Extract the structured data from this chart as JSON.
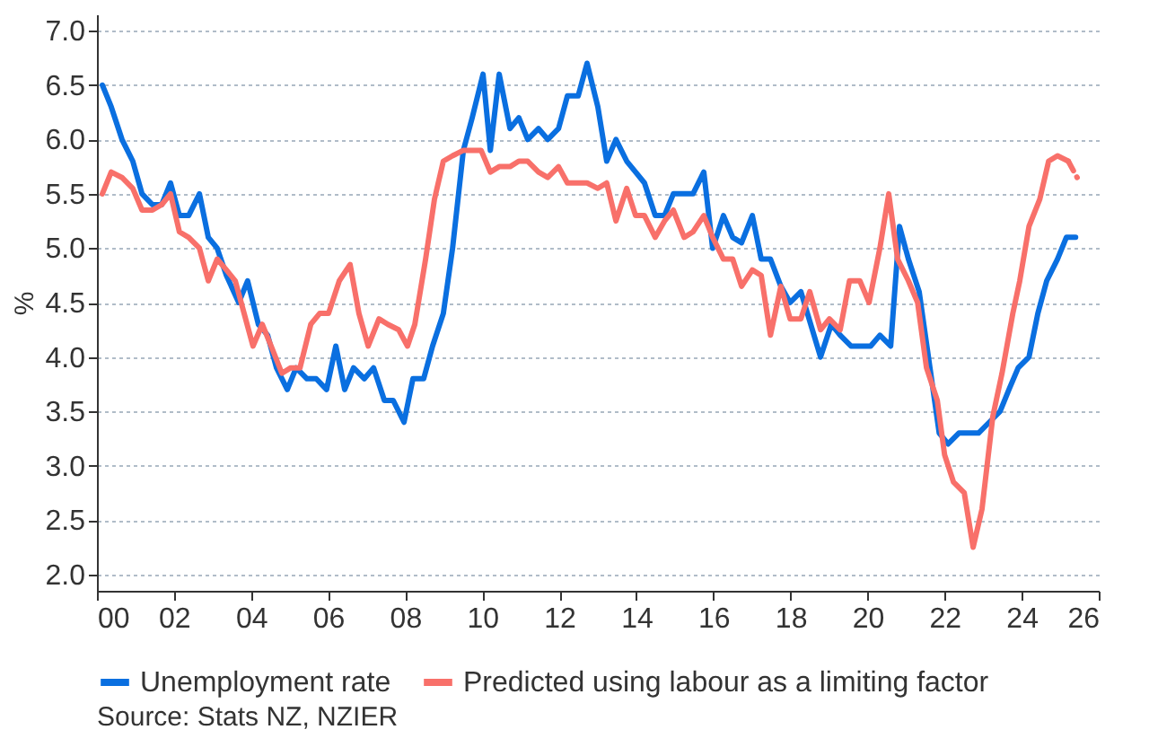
{
  "chart_data": {
    "type": "line",
    "ylabel": "%",
    "annotations": [
      "Source: Stats NZ, NZIER"
    ],
    "xlim": [
      2000,
      2026
    ],
    "xticks": [
      {
        "value": 2000,
        "label": "00"
      },
      {
        "value": 2002,
        "label": "02"
      },
      {
        "value": 2004,
        "label": "04"
      },
      {
        "value": 2006,
        "label": "06"
      },
      {
        "value": 2008,
        "label": "08"
      },
      {
        "value": 2010,
        "label": "10"
      },
      {
        "value": 2012,
        "label": "12"
      },
      {
        "value": 2014,
        "label": "14"
      },
      {
        "value": 2016,
        "label": "16"
      },
      {
        "value": 2018,
        "label": "18"
      },
      {
        "value": 2020,
        "label": "20"
      },
      {
        "value": 2022,
        "label": "22"
      },
      {
        "value": 2024,
        "label": "24"
      },
      {
        "value": 2026,
        "label": "26"
      }
    ],
    "ylim": [
      1.85,
      7.15
    ],
    "yticks": [
      {
        "value": 2,
        "label": "2.0"
      },
      2.5,
      {
        "value": 3,
        "label": "3.0"
      },
      3.5,
      {
        "value": 4,
        "label": "4.0"
      },
      4.5,
      {
        "value": 5,
        "label": "5.0"
      },
      5.5,
      {
        "value": 6,
        "label": "6.0"
      },
      6.5,
      {
        "value": 7,
        "label": "7.0"
      }
    ],
    "grid": "y",
    "legend": "bottom",
    "marker": "none",
    "series": [
      {
        "name": "Unemployment rate",
        "color": "#0a6fe0",
        "line_style": "solid",
        "x": [
          2000.14,
          2000.37,
          2000.65,
          2000.93,
          2001.17,
          2001.44,
          2001.68,
          2001.91,
          2002.14,
          2002.38,
          2002.66,
          2002.89,
          2003.12,
          2003.36,
          2003.68,
          2003.91,
          2004.19,
          2004.43,
          2004.66,
          2004.94,
          2005.17,
          2005.45,
          2005.69,
          2005.96,
          2006.2,
          2006.43,
          2006.66,
          2006.94,
          2007.18,
          2007.46,
          2007.69,
          2007.97,
          2008.2,
          2008.48,
          2008.71,
          2008.99,
          2009.23,
          2009.51,
          2009.74,
          2010.02,
          2010.21,
          2010.44,
          2010.72,
          2010.95,
          2011.18,
          2011.46,
          2011.7,
          2011.98,
          2012.21,
          2012.49,
          2012.72,
          2013.0,
          2013.23,
          2013.47,
          2013.75,
          2013.98,
          2014.21,
          2014.49,
          2014.73,
          2014.96,
          2015.24,
          2015.47,
          2015.75,
          2015.98,
          2016.26,
          2016.5,
          2016.73,
          2017.01,
          2017.24,
          2017.48,
          2017.75,
          2017.99,
          2018.27,
          2018.78,
          2019.06,
          2019.29,
          2019.57,
          2019.8,
          2020.08,
          2020.32,
          2020.6,
          2020.83,
          2021.06,
          2021.34,
          2021.62,
          2021.86,
          2022.09,
          2022.37,
          2022.65,
          2022.88,
          2023.16,
          2023.44,
          2023.67,
          2023.91,
          2024.19,
          2024.42,
          2024.65,
          2024.93,
          2025.16,
          2025.4
        ],
        "values": [
          6.5,
          6.3,
          6.0,
          5.8,
          5.5,
          5.4,
          5.4,
          5.6,
          5.3,
          5.3,
          5.5,
          5.1,
          5.0,
          4.75,
          4.5,
          4.7,
          4.3,
          4.2,
          3.9,
          3.7,
          3.9,
          3.8,
          3.8,
          3.7,
          4.1,
          3.7,
          3.9,
          3.8,
          3.9,
          3.6,
          3.6,
          3.4,
          3.8,
          3.8,
          4.1,
          4.4,
          5.0,
          5.9,
          6.2,
          6.6,
          5.9,
          6.6,
          6.1,
          6.2,
          6.0,
          6.1,
          6.0,
          6.1,
          6.4,
          6.4,
          6.7,
          6.3,
          5.8,
          6.0,
          5.8,
          5.7,
          5.6,
          5.3,
          5.3,
          5.5,
          5.5,
          5.5,
          5.7,
          5.0,
          5.3,
          5.1,
          5.05,
          5.3,
          4.9,
          4.9,
          4.65,
          4.5,
          4.6,
          4.0,
          4.3,
          4.2,
          4.1,
          4.1,
          4.1,
          4.2,
          4.1,
          5.2,
          4.9,
          4.6,
          3.9,
          3.3,
          3.2,
          3.3,
          3.3,
          3.3,
          3.4,
          3.5,
          3.7,
          3.9,
          4.0,
          4.4,
          4.7,
          4.9,
          5.1,
          5.1
        ]
      },
      {
        "name": "Predicted using labour as a limiting factor",
        "color": "#f8706a",
        "line_style": "solid",
        "x": [
          2000.14,
          2000.37,
          2000.65,
          2000.93,
          2001.17,
          2001.44,
          2001.68,
          2001.91,
          2002.14,
          2002.38,
          2002.66,
          2002.89,
          2003.12,
          2003.36,
          2003.59,
          2003.82,
          2004.05,
          2004.29,
          2004.52,
          2004.8,
          2005.03,
          2005.27,
          2005.55,
          2005.78,
          2006.01,
          2006.29,
          2006.57,
          2006.8,
          2007.04,
          2007.32,
          2007.55,
          2007.83,
          2008.06,
          2008.25,
          2008.53,
          2008.76,
          2008.99,
          2009.23,
          2009.51,
          2009.74,
          2009.97,
          2010.21,
          2010.44,
          2010.72,
          2010.95,
          2011.18,
          2011.46,
          2011.7,
          2011.98,
          2012.21,
          2012.49,
          2012.72,
          2013.0,
          2013.23,
          2013.47,
          2013.75,
          2013.98,
          2014.21,
          2014.49,
          2014.73,
          2014.96,
          2015.24,
          2015.47,
          2015.75,
          2015.98,
          2016.26,
          2016.5,
          2016.73,
          2017.01,
          2017.24,
          2017.48,
          2017.75,
          2017.99,
          2018.27,
          2018.5,
          2018.78,
          2019.01,
          2019.29,
          2019.53,
          2019.8,
          2020.04,
          2020.32,
          2020.55,
          2020.78,
          2021.06,
          2021.3,
          2021.53,
          2021.81,
          2022.0,
          2022.23,
          2022.51,
          2022.74,
          2022.97,
          2023.25,
          2023.49,
          2023.77,
          2023.95,
          2024.19,
          2024.47,
          2024.7,
          2024.93,
          2025.21
        ],
        "values": [
          5.5,
          5.7,
          5.65,
          5.55,
          5.35,
          5.35,
          5.4,
          5.5,
          5.15,
          5.1,
          5.0,
          4.7,
          4.9,
          4.8,
          4.7,
          4.4,
          4.1,
          4.3,
          4.1,
          3.85,
          3.9,
          3.9,
          4.3,
          4.4,
          4.4,
          4.7,
          4.85,
          4.4,
          4.1,
          4.35,
          4.3,
          4.25,
          4.1,
          4.3,
          4.9,
          5.45,
          5.8,
          5.85,
          5.9,
          5.9,
          5.9,
          5.7,
          5.75,
          5.75,
          5.8,
          5.8,
          5.7,
          5.65,
          5.75,
          5.6,
          5.6,
          5.6,
          5.55,
          5.6,
          5.25,
          5.55,
          5.3,
          5.3,
          5.1,
          5.25,
          5.35,
          5.1,
          5.15,
          5.3,
          5.1,
          4.9,
          4.9,
          4.65,
          4.8,
          4.75,
          4.2,
          4.65,
          4.35,
          4.35,
          4.6,
          4.25,
          4.35,
          4.25,
          4.7,
          4.7,
          4.5,
          5.0,
          5.5,
          4.9,
          4.7,
          4.5,
          3.9,
          3.6,
          3.1,
          2.85,
          2.75,
          2.25,
          2.6,
          3.45,
          3.85,
          4.4,
          4.7,
          5.2,
          5.45,
          5.8,
          5.85,
          5.8
        ]
      },
      {
        "color": "#f8706a",
        "line_style": "dashed",
        "x": [
          2025.21,
          2025.44
        ],
        "values": [
          5.8,
          5.65
        ]
      }
    ]
  }
}
